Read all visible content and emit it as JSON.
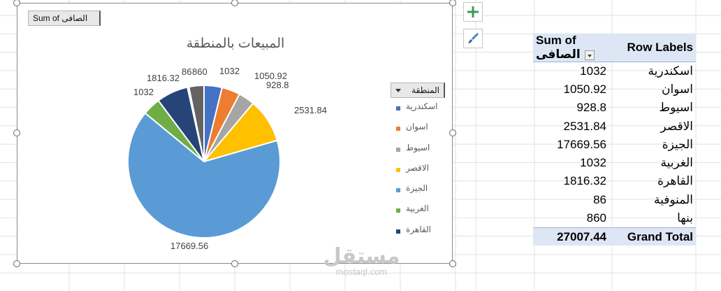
{
  "chart_field_button": "Sum of الصافى",
  "legend_field_button": "المنطقة",
  "watermark": {
    "arabic": "مستقل",
    "latin": "mostaql.com"
  },
  "chart_data": {
    "type": "pie",
    "title": "المبيعات بالمنطقة",
    "categories": [
      "اسكندرية",
      "اسوان",
      "اسيوط",
      "الاقصر",
      "الجيزة",
      "الغربية",
      "القاهرة",
      "المنوفية",
      "بنها"
    ],
    "values": [
      1032,
      1050.92,
      928.8,
      2531.84,
      17669.56,
      1032,
      1816.32,
      86,
      860
    ],
    "data_labels": [
      "1032",
      "1050.92",
      "928.8",
      "2531.84",
      "17669.56",
      "1032",
      "1816.32",
      "86",
      "860"
    ],
    "colors": [
      "#4472c4",
      "#ed7d31",
      "#a5a5a5",
      "#ffc000",
      "#5b9bd5",
      "#70ad47",
      "#264478",
      "#9e480e",
      "#636363"
    ],
    "legend": {
      "placement": "right",
      "visible_entries": [
        "اسكندرية",
        "اسوان",
        "اسيوط",
        "الاقصر",
        "الجيزة",
        "الغربية",
        "القاهرة"
      ]
    }
  },
  "pivot": {
    "header": {
      "label_col": "Row Labels",
      "value_col": "Sum of الصافى"
    },
    "rows": [
      {
        "label": "اسكندرية",
        "value": "1032"
      },
      {
        "label": "اسوان",
        "value": "1050.92"
      },
      {
        "label": "اسيوط",
        "value": "928.8"
      },
      {
        "label": "الاقصر",
        "value": "2531.84"
      },
      {
        "label": "الجيزة",
        "value": "17669.56"
      },
      {
        "label": "الغربية",
        "value": "1032"
      },
      {
        "label": "القاهرة",
        "value": "1816.32"
      },
      {
        "label": "المنوفية",
        "value": "86"
      },
      {
        "label": "بنها",
        "value": "860"
      }
    ],
    "total": {
      "label": "Grand Total",
      "value": "27007.44"
    }
  },
  "icons": {
    "add_element": "plus-icon",
    "chart_styles": "brush-icon"
  }
}
